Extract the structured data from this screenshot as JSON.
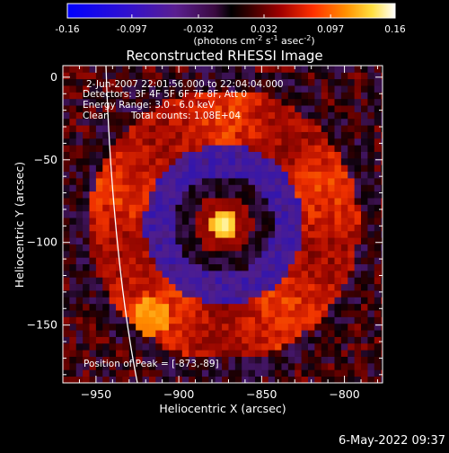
{
  "colorbar": {
    "ticks": [
      "-0.16",
      "-0.097",
      "-0.032",
      "0.032",
      "0.097",
      "0.16"
    ],
    "tick_values": [
      -0.16,
      -0.097,
      -0.032,
      0.032,
      0.097,
      0.16
    ],
    "unit_label": "(photons cm",
    "unit_sup1": "-2",
    "unit_mid": " s",
    "unit_sup2": "-1",
    "unit_mid2": " asec",
    "unit_sup3": "-2",
    "unit_end": ")"
  },
  "chart_data": {
    "type": "heatmap",
    "title": "Reconstructed RHESSI Image",
    "xlabel": "Heliocentric X (arcsec)",
    "ylabel": "Heliocentric Y (arcsec)",
    "xlim": [
      -970,
      -777
    ],
    "ylim": [
      -185,
      7
    ],
    "x_ticks": [
      -950,
      -900,
      -850,
      -800
    ],
    "y_ticks": [
      0,
      -50,
      -100,
      -150
    ],
    "zlim": [
      -0.16,
      0.16
    ],
    "colormap": "rhessi (blue-purple-red-orange-yellow-white)",
    "peak_position": [
      -873,
      -89
    ],
    "annotations": [
      "2-Jun-2007 22:01:56.000 to 22:04:04.000",
      "Detectors: 3F 4F 5F 6F 7F 8F, Att 0",
      "Energy Range: 3.0 - 6.0 keV",
      "Clean",
      "Total counts: 1.08E+04",
      "Position of Peak = [-873,-89]"
    ]
  },
  "timestamp": "6-May-2022 09:37",
  "colors": {
    "limb": "#ffffff",
    "peak": "#ffff60",
    "background": "#000000"
  }
}
